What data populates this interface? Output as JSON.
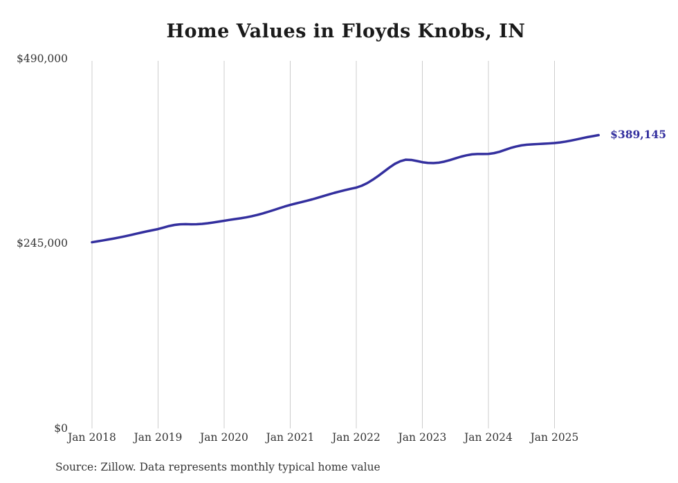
{
  "chart": {
    "title": "Home Values in Floyds Knobs, IN",
    "source": "Source: Zillow. Data represents monthly typical home value",
    "end_label": "$389,145",
    "y_tick_labels": {
      "zero": "$0",
      "mid": "$245,000",
      "top": "$490,000"
    },
    "line_color": "#332f9e",
    "grid_color": "#cccccc",
    "text_color": "#333333"
  },
  "chart_data": {
    "type": "line",
    "title": "Home Values in Floyds Knobs, IN",
    "xlabel": "",
    "ylabel": "",
    "ylim": [
      0,
      490000
    ],
    "y_ticks": [
      0,
      245000,
      490000
    ],
    "grid": "vertical-only",
    "legend": "none",
    "annotations": [
      "$389,145"
    ],
    "x_tick_labels": [
      "Jan 2018",
      "Jan 2019",
      "Jan 2020",
      "Jan 2021",
      "Jan 2022",
      "Jan 2023",
      "Jan 2024",
      "Jan 2025"
    ],
    "x": [
      "2018-01",
      "2018-02",
      "2018-03",
      "2018-04",
      "2018-05",
      "2018-06",
      "2018-07",
      "2018-08",
      "2018-09",
      "2018-10",
      "2018-11",
      "2018-12",
      "2019-01",
      "2019-02",
      "2019-03",
      "2019-04",
      "2019-05",
      "2019-06",
      "2019-07",
      "2019-08",
      "2019-09",
      "2019-10",
      "2019-11",
      "2019-12",
      "2020-01",
      "2020-02",
      "2020-03",
      "2020-04",
      "2020-05",
      "2020-06",
      "2020-07",
      "2020-08",
      "2020-09",
      "2020-10",
      "2020-11",
      "2020-12",
      "2021-01",
      "2021-02",
      "2021-03",
      "2021-04",
      "2021-05",
      "2021-06",
      "2021-07",
      "2021-08",
      "2021-09",
      "2021-10",
      "2021-11",
      "2021-12",
      "2022-01",
      "2022-02",
      "2022-03",
      "2022-04",
      "2022-05",
      "2022-06",
      "2022-07",
      "2022-08",
      "2022-09",
      "2022-10",
      "2022-11",
      "2022-12",
      "2023-01",
      "2023-02",
      "2023-03",
      "2023-04",
      "2023-05",
      "2023-06",
      "2023-07",
      "2023-08",
      "2023-09",
      "2023-10",
      "2023-11",
      "2023-12",
      "2024-01",
      "2024-02",
      "2024-03",
      "2024-04",
      "2024-05",
      "2024-06",
      "2024-07",
      "2024-08",
      "2024-09",
      "2024-10",
      "2024-11",
      "2024-12",
      "2025-01",
      "2025-02",
      "2025-03",
      "2025-04",
      "2025-05",
      "2025-06",
      "2025-07",
      "2025-08",
      "2025-09"
    ],
    "series": [
      {
        "name": "Typical home value ($)",
        "values": [
          247000,
          248200,
          249400,
          250700,
          252000,
          253400,
          254900,
          256500,
          258200,
          259900,
          261500,
          263000,
          264500,
          266500,
          268500,
          270000,
          270800,
          271000,
          270800,
          270900,
          271400,
          272200,
          273200,
          274300,
          275500,
          276700,
          277800,
          278800,
          280000,
          281500,
          283200,
          285200,
          287400,
          289700,
          292100,
          294400,
          296500,
          298400,
          300200,
          302000,
          303900,
          306000,
          308200,
          310400,
          312500,
          314400,
          316200,
          317900,
          319500,
          322000,
          325500,
          330000,
          335000,
          340500,
          346000,
          351000,
          354500,
          356500,
          356200,
          354800,
          353200,
          352300,
          352000,
          352600,
          354000,
          356000,
          358300,
          360500,
          362300,
          363600,
          364100,
          364100,
          364200,
          365200,
          367000,
          369500,
          372000,
          374000,
          375500,
          376400,
          376900,
          377300,
          377700,
          378100,
          378600,
          379400,
          380500,
          381900,
          383400,
          385000,
          386500,
          387800,
          389145
        ]
      }
    ],
    "last_point": {
      "x": "2025-09",
      "value": 389145,
      "label": "$389,145"
    }
  }
}
